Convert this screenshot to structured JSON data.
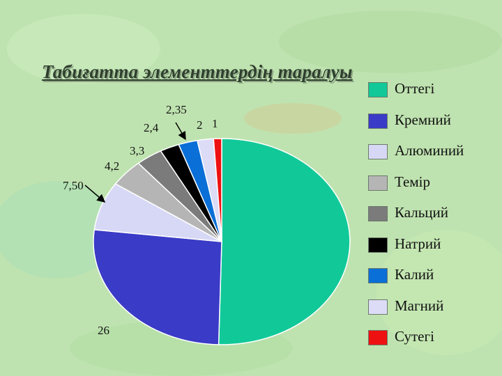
{
  "title": "Табиғатта элементтердің таралуы",
  "chart_data": {
    "type": "pie",
    "title": "Табиғатта элементтердің таралуы",
    "legend_position": "right",
    "slices": [
      {
        "name": "Оттегі",
        "value": 49.5,
        "color": "#11c998"
      },
      {
        "name": "Кремний",
        "value": 26,
        "color": "#3a3bc6"
      },
      {
        "name": "Алюминий",
        "value": 7.5,
        "color": "#d7d8f5",
        "label": "7,50"
      },
      {
        "name": "Темір",
        "value": 4.2,
        "color": "#b5b5b5",
        "label": "4,2"
      },
      {
        "name": "Кальций",
        "value": 3.3,
        "color": "#7b7b7b",
        "label": "3,3"
      },
      {
        "name": "Натрий",
        "value": 2.4,
        "color": "#000000",
        "label": "2,4"
      },
      {
        "name": "Калий",
        "value": 2.35,
        "color": "#0a6fd6",
        "label": "2,35"
      },
      {
        "name": "Магний",
        "value": 2,
        "color": "#dcdcf7",
        "label": "2"
      },
      {
        "name": "Сутегі",
        "value": 1,
        "color": "#ee1111",
        "label": "1"
      }
    ],
    "extra_labels": [
      {
        "text": "26"
      }
    ]
  }
}
